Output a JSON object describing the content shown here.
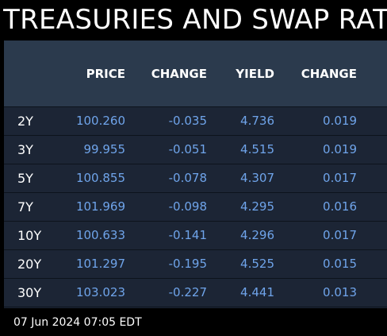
{
  "title": "TREASURIES AND SWAP RAT",
  "columns": [
    "",
    "PRICE",
    "CHANGE",
    "YIELD",
    "CHANGE"
  ],
  "rows": [
    {
      "tenor": "2Y",
      "price": "100.260",
      "price_change": "-0.035",
      "yield": "4.736",
      "yield_change": "0.019"
    },
    {
      "tenor": "3Y",
      "price": "99.955",
      "price_change": "-0.051",
      "yield": "4.515",
      "yield_change": "0.019"
    },
    {
      "tenor": "5Y",
      "price": "100.855",
      "price_change": "-0.078",
      "yield": "4.307",
      "yield_change": "0.017"
    },
    {
      "tenor": "7Y",
      "price": "101.969",
      "price_change": "-0.098",
      "yield": "4.295",
      "yield_change": "0.016"
    },
    {
      "tenor": "10Y",
      "price": "100.633",
      "price_change": "-0.141",
      "yield": "4.296",
      "yield_change": "0.017"
    },
    {
      "tenor": "20Y",
      "price": "101.297",
      "price_change": "-0.195",
      "yield": "4.525",
      "yield_change": "0.015"
    },
    {
      "tenor": "30Y",
      "price": "103.023",
      "price_change": "-0.227",
      "yield": "4.441",
      "yield_change": "0.013"
    }
  ],
  "footer": "07 Jun 2024 07:05 EDT",
  "colors": {
    "background": "#000000",
    "header_bg": "#2b3a4d",
    "row_bg": "#1c2535",
    "value_text": "#6fa4ea",
    "label_text": "#ffffff"
  }
}
